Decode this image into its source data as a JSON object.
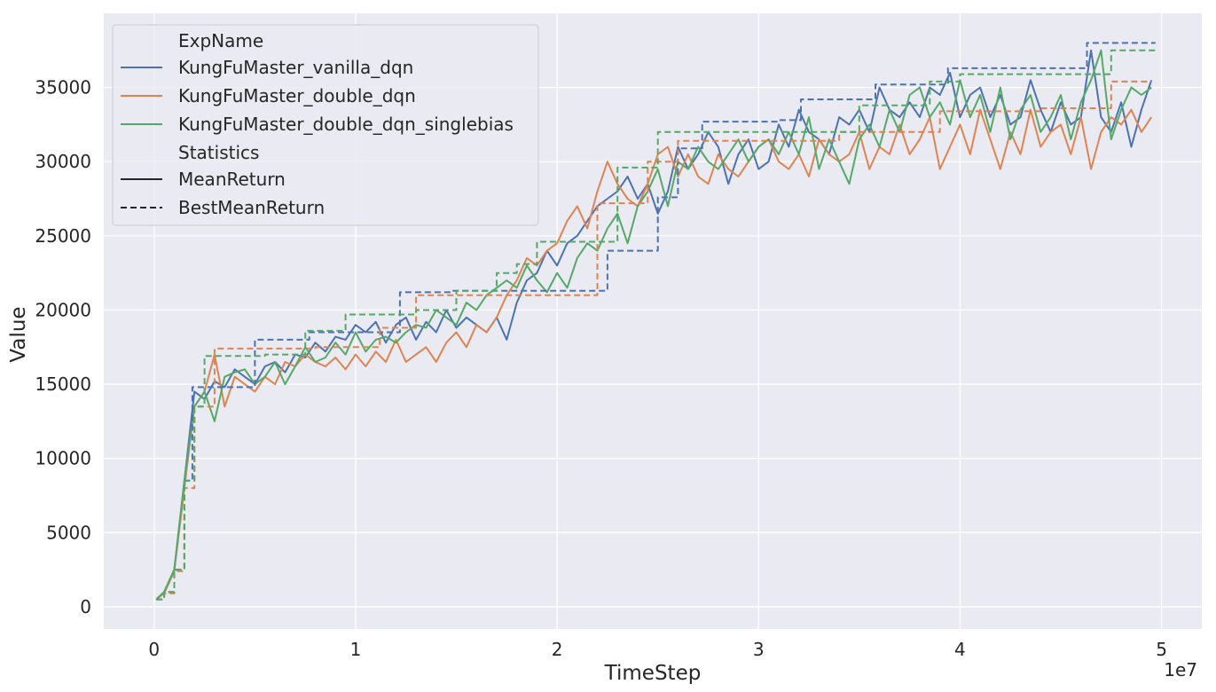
{
  "chart_data": {
    "type": "line",
    "title": "",
    "xlabel": "TimeStep",
    "ylabel": "Value",
    "x_offset_label": "1e7",
    "xlim": [
      -0.25,
      5.2
    ],
    "ylim": [
      -1500,
      40000
    ],
    "x_ticks": [
      0,
      1,
      2,
      3,
      4,
      5
    ],
    "x_tick_labels": [
      "0",
      "1",
      "2",
      "3",
      "4",
      "5"
    ],
    "y_ticks": [
      0,
      5000,
      10000,
      15000,
      20000,
      25000,
      30000,
      35000
    ],
    "y_tick_labels": [
      "0",
      "5000",
      "10000",
      "15000",
      "20000",
      "25000",
      "30000",
      "35000"
    ],
    "grid": true,
    "legend": {
      "placement": "top-left",
      "hue_title": "ExpName",
      "style_title": "Statistics",
      "style_entries": [
        {
          "label": "MeanReturn",
          "dash": "solid"
        },
        {
          "label": "BestMeanReturn",
          "dash": "dashed"
        }
      ]
    },
    "colors": {
      "background": "#eaeaf2",
      "grid": "#ffffff",
      "vanilla": "#4c72b0",
      "double": "#dd8452",
      "singlebias": "#55a868"
    },
    "series": [
      {
        "name": "KungFuMaster_vanilla_dqn",
        "color": "#4c72b0",
        "mean_return": {
          "x": [
            0.01,
            0.05,
            0.1,
            0.15,
            0.2,
            0.25,
            0.3,
            0.35,
            0.4,
            0.45,
            0.5,
            0.55,
            0.6,
            0.65,
            0.7,
            0.75,
            0.8,
            0.85,
            0.9,
            0.95,
            1.0,
            1.05,
            1.1,
            1.15,
            1.2,
            1.25,
            1.3,
            1.35,
            1.4,
            1.45,
            1.5,
            1.55,
            1.6,
            1.65,
            1.7,
            1.75,
            1.8,
            1.85,
            1.9,
            1.95,
            2.0,
            2.05,
            2.1,
            2.15,
            2.2,
            2.25,
            2.3,
            2.35,
            2.4,
            2.45,
            2.5,
            2.55,
            2.6,
            2.65,
            2.7,
            2.75,
            2.8,
            2.85,
            2.9,
            2.95,
            3.0,
            3.05,
            3.1,
            3.15,
            3.2,
            3.25,
            3.3,
            3.35,
            3.4,
            3.45,
            3.5,
            3.55,
            3.6,
            3.65,
            3.7,
            3.75,
            3.8,
            3.85,
            3.9,
            3.95,
            4.0,
            4.05,
            4.1,
            4.15,
            4.2,
            4.25,
            4.3,
            4.35,
            4.4,
            4.45,
            4.5,
            4.55,
            4.6,
            4.65,
            4.7,
            4.75,
            4.8,
            4.85,
            4.9,
            4.95
          ],
          "y": [
            500,
            1000,
            2500,
            8500,
            14500,
            14000,
            15200,
            14800,
            16000,
            15500,
            15000,
            16200,
            16500,
            15800,
            17000,
            16800,
            17800,
            17200,
            18200,
            18000,
            19000,
            18500,
            19200,
            17800,
            19000,
            19500,
            18000,
            19200,
            18500,
            20000,
            18800,
            19500,
            19000,
            18500,
            19500,
            18000,
            20500,
            22000,
            22500,
            24000,
            23000,
            24500,
            25000,
            26000,
            27000,
            27500,
            28000,
            29000,
            27500,
            28500,
            26500,
            28000,
            31000,
            29500,
            30500,
            32000,
            31000,
            28500,
            30500,
            31500,
            29500,
            30000,
            32500,
            31000,
            33500,
            32000,
            31500,
            30500,
            33000,
            32500,
            33500,
            32000,
            35000,
            33500,
            33000,
            34000,
            33000,
            35000,
            34500,
            36000,
            33000,
            34500,
            35000,
            33000,
            34500,
            32500,
            33000,
            35500,
            33500,
            32000,
            34000,
            32500,
            33000,
            37500,
            33000,
            32000,
            34000,
            31000,
            33500,
            35500
          ]
        },
        "best_mean_return": {
          "x": [
            0.01,
            0.05,
            0.1,
            0.15,
            0.19,
            0.5,
            0.77,
            1.22,
            1.48,
            2.25,
            2.5,
            2.6,
            2.72,
            3.09,
            3.21,
            3.58,
            3.94,
            4.63,
            4.97
          ],
          "y": [
            500,
            1000,
            2500,
            8500,
            14800,
            18000,
            18500,
            21200,
            21300,
            24000,
            27600,
            30900,
            32700,
            32800,
            34200,
            35200,
            36300,
            38000,
            38000
          ]
        }
      },
      {
        "name": "KungFuMaster_double_dqn",
        "color": "#dd8452",
        "mean_return": {
          "x": [
            0.01,
            0.05,
            0.1,
            0.15,
            0.2,
            0.25,
            0.3,
            0.35,
            0.4,
            0.45,
            0.5,
            0.55,
            0.6,
            0.65,
            0.7,
            0.75,
            0.8,
            0.85,
            0.9,
            0.95,
            1.0,
            1.05,
            1.1,
            1.15,
            1.2,
            1.25,
            1.3,
            1.35,
            1.4,
            1.45,
            1.5,
            1.55,
            1.6,
            1.65,
            1.7,
            1.75,
            1.8,
            1.85,
            1.9,
            1.95,
            2.0,
            2.05,
            2.1,
            2.15,
            2.2,
            2.25,
            2.3,
            2.35,
            2.4,
            2.45,
            2.5,
            2.55,
            2.6,
            2.65,
            2.7,
            2.75,
            2.8,
            2.85,
            2.9,
            2.95,
            3.0,
            3.05,
            3.1,
            3.15,
            3.2,
            3.25,
            3.3,
            3.35,
            3.4,
            3.45,
            3.5,
            3.55,
            3.6,
            3.65,
            3.7,
            3.75,
            3.8,
            3.85,
            3.9,
            3.95,
            4.0,
            4.05,
            4.1,
            4.15,
            4.2,
            4.25,
            4.3,
            4.35,
            4.4,
            4.45,
            4.5,
            4.55,
            4.6,
            4.65,
            4.7,
            4.75,
            4.8,
            4.85,
            4.9,
            4.95
          ],
          "y": [
            500,
            900,
            2400,
            8000,
            13500,
            14500,
            17000,
            13500,
            15500,
            15000,
            14500,
            15500,
            15000,
            16500,
            16200,
            17000,
            16500,
            16200,
            16800,
            16000,
            17000,
            16200,
            17200,
            16500,
            18000,
            16500,
            17000,
            17500,
            16500,
            17800,
            18500,
            17500,
            19000,
            18500,
            19500,
            21000,
            22000,
            23500,
            23000,
            24000,
            24500,
            26000,
            27000,
            25500,
            28000,
            30000,
            28500,
            27500,
            27000,
            28500,
            30500,
            31000,
            29000,
            30500,
            29000,
            28500,
            30500,
            29500,
            29000,
            30000,
            31000,
            31500,
            30000,
            29500,
            30500,
            29000,
            31500,
            30500,
            30000,
            30500,
            32000,
            29500,
            31000,
            30500,
            32500,
            30500,
            31500,
            33000,
            29500,
            31000,
            32500,
            30500,
            33500,
            31500,
            29500,
            32000,
            30500,
            33500,
            31000,
            32000,
            32500,
            30500,
            33000,
            29500,
            32000,
            33000,
            32500,
            33500,
            32000,
            33000
          ]
        },
        "best_mean_return": {
          "x": [
            0.01,
            0.05,
            0.1,
            0.15,
            0.2,
            0.3,
            0.8,
            1.12,
            1.3,
            2.2,
            2.45,
            2.6,
            3.4,
            3.9,
            4.4,
            4.75,
            4.95
          ],
          "y": [
            500,
            900,
            2400,
            8000,
            13500,
            17400,
            17500,
            18800,
            21000,
            27200,
            30000,
            31400,
            32000,
            33400,
            33600,
            35400,
            35400
          ]
        }
      },
      {
        "name": "KungFuMaster_double_dqn_singlebias",
        "color": "#55a868",
        "mean_return": {
          "x": [
            0.01,
            0.05,
            0.1,
            0.15,
            0.2,
            0.25,
            0.3,
            0.35,
            0.4,
            0.45,
            0.5,
            0.55,
            0.6,
            0.65,
            0.7,
            0.75,
            0.8,
            0.85,
            0.9,
            0.95,
            1.0,
            1.05,
            1.1,
            1.15,
            1.2,
            1.25,
            1.3,
            1.35,
            1.4,
            1.45,
            1.5,
            1.55,
            1.6,
            1.65,
            1.7,
            1.75,
            1.8,
            1.85,
            1.9,
            1.95,
            2.0,
            2.05,
            2.1,
            2.15,
            2.2,
            2.25,
            2.3,
            2.35,
            2.4,
            2.45,
            2.5,
            2.55,
            2.6,
            2.65,
            2.7,
            2.75,
            2.8,
            2.85,
            2.9,
            2.95,
            3.0,
            3.05,
            3.1,
            3.15,
            3.2,
            3.25,
            3.3,
            3.35,
            3.4,
            3.45,
            3.5,
            3.55,
            3.6,
            3.65,
            3.7,
            3.75,
            3.8,
            3.85,
            3.9,
            3.95,
            4.0,
            4.05,
            4.1,
            4.15,
            4.2,
            4.25,
            4.3,
            4.35,
            4.4,
            4.45,
            4.5,
            4.55,
            4.6,
            4.65,
            4.7,
            4.75,
            4.8,
            4.85,
            4.9,
            4.95
          ],
          "y": [
            500,
            1000,
            2500,
            8500,
            13500,
            14500,
            12500,
            15500,
            15800,
            16000,
            15000,
            15500,
            16500,
            15000,
            16200,
            17500,
            16500,
            16800,
            17800,
            17000,
            18500,
            17200,
            18000,
            18200,
            17800,
            18500,
            19000,
            18800,
            20000,
            19500,
            19000,
            20500,
            20000,
            21000,
            21500,
            22000,
            21500,
            23000,
            22000,
            21200,
            22500,
            21500,
            23500,
            24500,
            24000,
            25500,
            26500,
            24500,
            27000,
            28000,
            29500,
            27000,
            30000,
            29500,
            31000,
            30000,
            29500,
            30500,
            31500,
            30000,
            31000,
            31500,
            30500,
            32000,
            30500,
            33000,
            29500,
            31500,
            30000,
            28500,
            31500,
            32500,
            31000,
            33500,
            32000,
            34500,
            35000,
            33000,
            34000,
            32500,
            35500,
            33000,
            34500,
            32000,
            35000,
            31500,
            33500,
            34500,
            32000,
            33000,
            34500,
            31500,
            34000,
            35500,
            37500,
            31500,
            33500,
            35000,
            34500,
            35000
          ]
        },
        "best_mean_return": {
          "x": [
            0.01,
            0.05,
            0.1,
            0.15,
            0.2,
            0.25,
            0.55,
            0.75,
            0.95,
            1.3,
            1.5,
            1.7,
            1.8,
            1.9,
            2.3,
            2.5,
            3.5,
            3.85,
            4.0,
            4.75,
            4.97
          ],
          "y": [
            500,
            1000,
            2500,
            8500,
            13500,
            16900,
            17000,
            18600,
            19700,
            20000,
            21300,
            22500,
            23100,
            24600,
            29600,
            32000,
            33800,
            35400,
            35900,
            37500,
            37500
          ]
        }
      }
    ]
  }
}
